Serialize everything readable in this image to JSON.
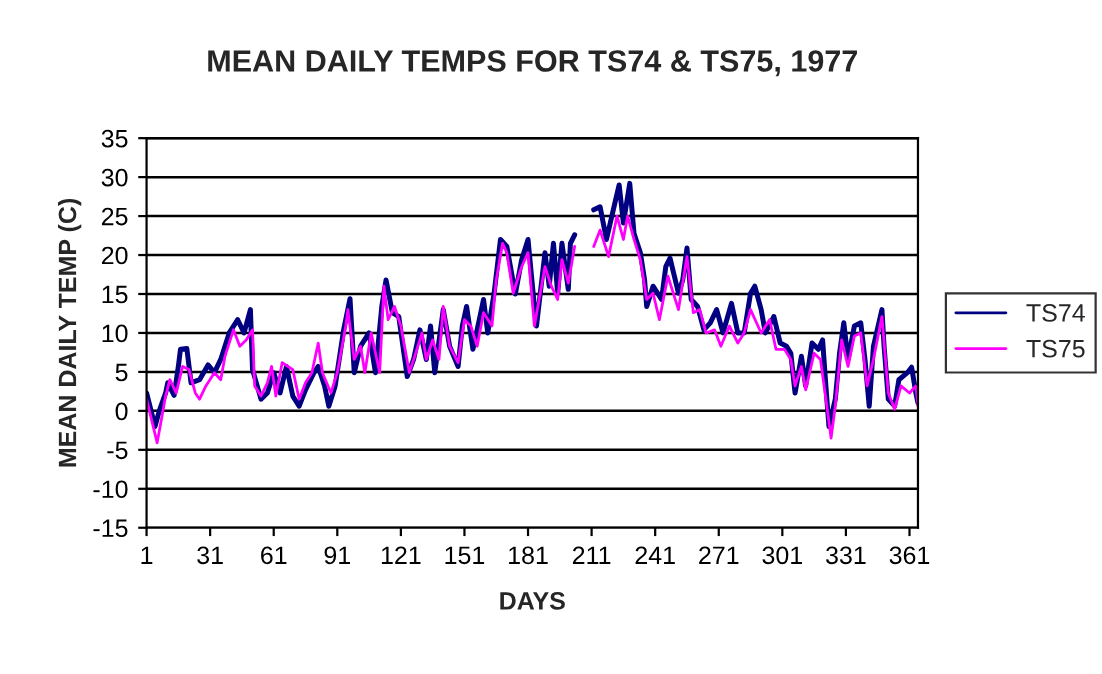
{
  "chart_data": {
    "type": "line",
    "title": "MEAN DAILY TEMPS FOR TS74 & TS75, 1977",
    "xlabel": "DAYS",
    "ylabel": "MEAN DAILY TEMP (C)",
    "xlim": [
      1,
      365
    ],
    "xticks": [
      1,
      31,
      61,
      91,
      121,
      151,
      181,
      211,
      241,
      271,
      301,
      331,
      361
    ],
    "ylim": [
      -15,
      35
    ],
    "yticks": [
      -15,
      -10,
      -5,
      0,
      5,
      10,
      15,
      20,
      25,
      30,
      35
    ],
    "grid": "y",
    "legend": "right",
    "marker": "none",
    "line_style": "solid",
    "series": [
      {
        "name": "TS74",
        "color": "#000080",
        "x": [
          1,
          5,
          7,
          10,
          11,
          14,
          16,
          17,
          20,
          22,
          26,
          30,
          33,
          36,
          38,
          40,
          44,
          47,
          50,
          51,
          55,
          58,
          61,
          64,
          67,
          70,
          73,
          76,
          80,
          82,
          85,
          87,
          90,
          94,
          97,
          99,
          102,
          106,
          109,
          112,
          114,
          117,
          120,
          124,
          127,
          130,
          133,
          135,
          137,
          141,
          144,
          148,
          150,
          152,
          155,
          158,
          160,
          162,
          165,
          168,
          171,
          175,
          178,
          181,
          184,
          185,
          189,
          191,
          193,
          195,
          197,
          200,
          201,
          203,
          207,
          212,
          215,
          218,
          222,
          224,
          226,
          229,
          231,
          234,
          236,
          237,
          240,
          244,
          246,
          248,
          252,
          254,
          256,
          258,
          261,
          264,
          267,
          270,
          273,
          277,
          280,
          283,
          286,
          288,
          291,
          293,
          297,
          300,
          303,
          305,
          307,
          310,
          312,
          315,
          318,
          320,
          322,
          323,
          326,
          328,
          330,
          332,
          335,
          338,
          340,
          342,
          344,
          348,
          349,
          351,
          354,
          356,
          360,
          362,
          364,
          365
        ],
        "values": [
          2.3,
          -2,
          0,
          2.3,
          3.6,
          2,
          5.7,
          7.9,
          8,
          3.6,
          4,
          5.9,
          4.9,
          6.6,
          8.3,
          10,
          11.7,
          10,
          13,
          5.3,
          1.5,
          2.3,
          4.9,
          2.3,
          5.7,
          1.9,
          0.6,
          2.7,
          4.9,
          5.7,
          3.2,
          0.6,
          3.2,
          10.4,
          14.4,
          4.9,
          8.3,
          10,
          4.9,
          13.4,
          16.8,
          12.6,
          12.1,
          4.4,
          6.6,
          10.4,
          6.6,
          10.9,
          4.9,
          13,
          8.3,
          5.7,
          10.9,
          13.4,
          7.9,
          11.7,
          14.3,
          10,
          15.1,
          22,
          21.1,
          15,
          19.4,
          22,
          13.4,
          10.9,
          20.3,
          16,
          21.5,
          15.1,
          21.5,
          15.6,
          21.5,
          22.6,
          null,
          25.8,
          26.2,
          22,
          26.7,
          29,
          24.1,
          29.2,
          22.8,
          20.3,
          16.8,
          13.4,
          16,
          14.3,
          18.5,
          19.6,
          15.1,
          16.8,
          20.9,
          14.3,
          13.4,
          10.4,
          11.3,
          13,
          10,
          13.8,
          10,
          10,
          15.1,
          16,
          13,
          10,
          12.1,
          8.7,
          8.3,
          7.4,
          2.3,
          7,
          3.2,
          8.7,
          7.9,
          9.1,
          1.5,
          -2,
          1.5,
          7.4,
          11.3,
          6.6,
          10.9,
          11.3,
          6.6,
          0.6,
          8.3,
          13,
          8.3,
          1.5,
          0.6,
          4,
          4.9,
          5.6,
          2.3,
          1
        ]
      },
      {
        "name": "TS75",
        "color": "#ff00ff",
        "x": [
          1,
          6,
          8,
          10,
          12,
          15,
          18,
          21,
          24,
          26,
          29,
          33,
          36,
          38,
          42,
          45,
          48,
          51,
          52,
          55,
          58,
          60,
          62,
          65,
          70,
          73,
          76,
          79,
          82,
          84,
          88,
          91,
          95,
          96,
          99,
          102,
          104,
          107,
          111,
          113,
          115,
          118,
          121,
          125,
          128,
          131,
          133,
          136,
          139,
          141,
          144,
          148,
          151,
          154,
          157,
          160,
          164,
          166,
          169,
          171,
          174,
          178,
          181,
          184,
          189,
          192,
          195,
          197,
          200,
          203,
          207,
          212,
          215,
          219,
          223,
          226,
          228,
          231,
          234,
          237,
          240,
          243,
          247,
          252,
          256,
          259,
          262,
          265,
          269,
          272,
          276,
          280,
          283,
          286,
          291,
          295,
          298,
          302,
          305,
          307,
          310,
          312,
          316,
          319,
          322,
          324,
          326,
          329,
          332,
          335,
          338,
          341,
          344,
          348,
          351,
          354,
          357,
          361,
          364,
          365
        ],
        "values": [
          1.5,
          -4.1,
          -1.1,
          1.9,
          4,
          2.3,
          5.7,
          5.3,
          2.3,
          1.5,
          3.2,
          4.9,
          4,
          7,
          10.4,
          8.3,
          9.1,
          10.4,
          3.2,
          1.9,
          3.6,
          5.7,
          1.9,
          6.2,
          5.3,
          1.5,
          3.6,
          4.9,
          8.7,
          4.9,
          2.3,
          4.9,
          10.9,
          13,
          6.6,
          8.3,
          4.9,
          10,
          4.9,
          16,
          11.7,
          13.4,
          10.9,
          4.9,
          7.4,
          10,
          6.6,
          9.1,
          6.6,
          13.4,
          8.3,
          6.2,
          11.7,
          10.9,
          8.3,
          12.6,
          10.9,
          16.8,
          21.5,
          20.3,
          15.1,
          18.5,
          20.3,
          10.9,
          18.5,
          16,
          14.3,
          19.4,
          16.4,
          21.1,
          null,
          21.1,
          23.2,
          19.8,
          25,
          22,
          25,
          22,
          19.4,
          14.3,
          15.1,
          11.7,
          17.3,
          13,
          19.8,
          12.6,
          13,
          10,
          10.4,
          8.3,
          10.9,
          8.7,
          10,
          13,
          10,
          11.7,
          7.9,
          7.9,
          6.6,
          3.2,
          5.7,
          2.7,
          7.4,
          6.6,
          0.6,
          -3.5,
          0.6,
          9.1,
          5.7,
          9.6,
          10,
          3.2,
          6.6,
          12.1,
          2.3,
          0.2,
          3.2,
          2.3,
          3.2,
          0.6
        ]
      }
    ]
  }
}
